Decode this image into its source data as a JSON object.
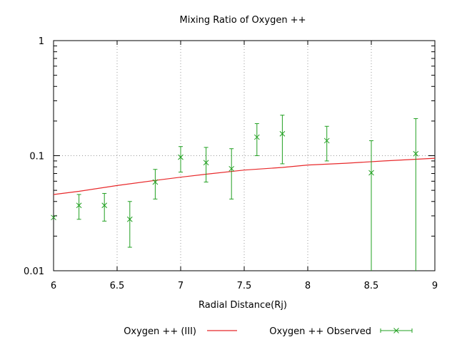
{
  "chart_data": {
    "type": "scatter",
    "title": "Mixing Ratio of Oxygen ++",
    "xlabel": "Radial Distance(Rj)",
    "ylabel": "",
    "xlim": [
      6,
      9
    ],
    "ylim": [
      0.01,
      1
    ],
    "yscale": "log",
    "grid": true,
    "legend_position": "bottom",
    "x_ticks": [
      6,
      6.5,
      7,
      7.5,
      8,
      8.5,
      9
    ],
    "x_tick_labels": [
      "6",
      "6.5",
      "7",
      "7.5",
      "8",
      "8.5",
      "9"
    ],
    "y_ticks": [
      0.01,
      0.1,
      1
    ],
    "y_tick_labels": [
      "0.01",
      "0.1",
      "1"
    ],
    "series": [
      {
        "name": "Oxygen ++ (III)",
        "kind": "line",
        "color": "#e8282a",
        "x": [
          6,
          6.2,
          6.5,
          6.8,
          7,
          7.2,
          7.5,
          7.8,
          8,
          8.3,
          8.6,
          9
        ],
        "y": [
          0.046,
          0.049,
          0.055,
          0.061,
          0.065,
          0.069,
          0.075,
          0.079,
          0.083,
          0.086,
          0.09,
          0.095
        ]
      },
      {
        "name": "Oxygen ++ Observed",
        "kind": "errorbars",
        "color": "#22a022",
        "x": [
          6,
          6.2,
          6.4,
          6.6,
          6.8,
          7,
          7.2,
          7.4,
          7.6,
          7.8,
          8.15,
          8.5,
          8.85
        ],
        "y": [
          0.029,
          0.037,
          0.037,
          0.028,
          0.059,
          0.097,
          0.087,
          0.077,
          0.145,
          0.155,
          0.135,
          0.071,
          0.104
        ],
        "y_low": [
          null,
          0.028,
          0.027,
          0.016,
          0.042,
          0.072,
          0.059,
          0.042,
          0.1,
          0.085,
          0.09,
          0.01,
          0.01
        ],
        "y_high": [
          null,
          0.046,
          0.047,
          0.04,
          0.076,
          0.12,
          0.118,
          0.115,
          0.19,
          0.225,
          0.18,
          0.135,
          0.21
        ]
      }
    ]
  }
}
